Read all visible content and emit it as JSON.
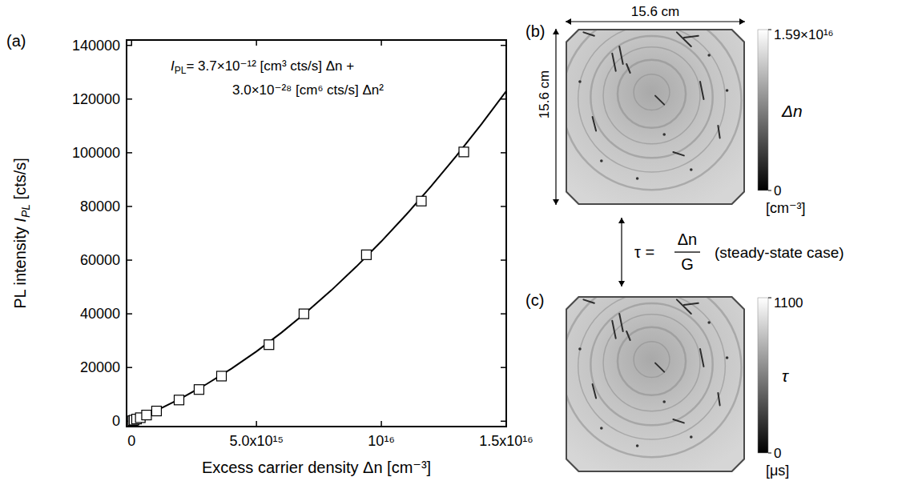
{
  "chart_data": [
    {
      "type": "scatter",
      "panel": "(a)",
      "x_label": "Excess carrier density Δn [cm⁻³]",
      "y_label": {
        "text": "PL intensity ",
        "symbol": "I",
        "sub": "PL",
        "rest": " [cts/s]"
      },
      "annotations": [
        {
          "symbol": "I",
          "sub": "PL",
          "text": "= 3.7×10⁻¹² [cm³ cts/s] Δn +"
        },
        {
          "text": "3.0×10⁻²⁸ [cm⁶ cts/s] Δn²"
        }
      ],
      "xlim": [
        -200000000000000.0,
        1.5e+16
      ],
      "ylim": [
        -2000,
        142000
      ],
      "xticks": [
        0,
        {
          "value": 5000000000000000.0,
          "label": "5.0x10¹⁵"
        },
        {
          "value": 1e+16,
          "label": "10¹⁶"
        },
        {
          "value": 1.5e+16,
          "label": "1.5x10¹⁶"
        }
      ],
      "yticks": [
        0,
        20000,
        40000,
        60000,
        80000,
        100000,
        120000,
        140000
      ],
      "grid": false,
      "series": [
        {
          "type": "scatter",
          "marker": "square",
          "color": "#000000",
          "x": [
            50000000000000.0,
            100000000000000.0,
            200000000000000.0,
            350000000000000.0,
            600000000000000.0,
            1000000000000000.0,
            1900000000000000.0,
            2700000000000000.0,
            3600000000000000.0,
            5500000000000000.0,
            6900000000000000.0,
            9400000000000000.0,
            1.16e+16,
            1.33e+16
          ],
          "values": [
            200,
            400,
            800,
            1300,
            2300,
            3800,
            7900,
            11800,
            16800,
            28500,
            40000,
            62000,
            82000,
            100300
          ]
        },
        {
          "type": "line",
          "line_style": "solid",
          "color": "#000000",
          "x": [
            0,
            1000000000000000.0,
            2000000000000000.0,
            3000000000000000.0,
            4000000000000000.0,
            5000000000000000.0,
            6000000000000000.0,
            7000000000000000.0,
            8000000000000000.0,
            9000000000000000.0,
            1e+16,
            1.1e+16,
            1.2e+16,
            1.3e+16,
            1.4e+16,
            1.5e+16
          ],
          "values": [
            0,
            4000,
            8600,
            13800,
            19600,
            26000,
            33000,
            40600,
            48800,
            57600,
            67000,
            77000,
            87600,
            98800,
            110600,
            123000
          ]
        }
      ]
    },
    {
      "type": "image",
      "panel": "(b)",
      "width_label": "15.6 cm",
      "height_label": "15.6 cm",
      "colorbar": {
        "range": [
          0,
          1.59e+16
        ],
        "ticks": [
          0,
          {
            "value": 1.59e+16,
            "label": "1.59×10¹⁶"
          }
        ],
        "title": "Δn",
        "unit": "[cm⁻³]"
      }
    },
    {
      "type": "image",
      "panel": "(c)",
      "colorbar": {
        "range": [
          0,
          1100
        ],
        "ticks": [
          0,
          1100
        ],
        "title": "τ",
        "unit": "[μs]"
      }
    }
  ],
  "relation": {
    "lhs": "τ =",
    "numerator": "Δn",
    "denominator": "G",
    "note": "(steady-state case)"
  }
}
